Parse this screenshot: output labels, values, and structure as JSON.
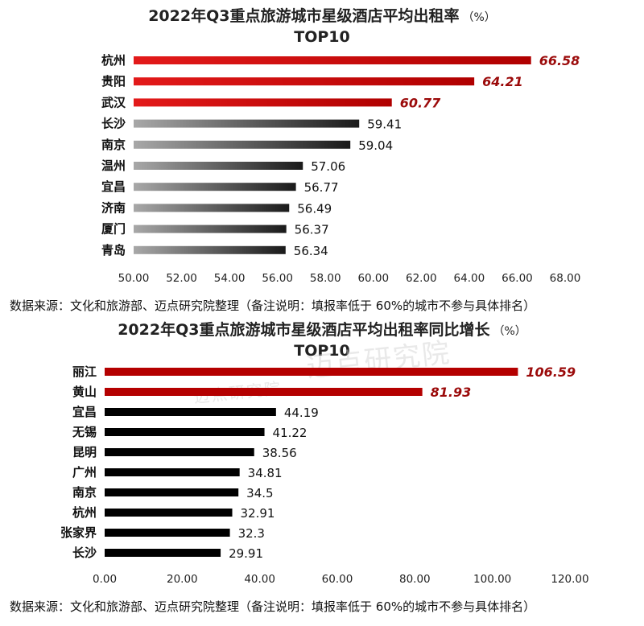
{
  "chart_data": [
    {
      "type": "bar",
      "orientation": "horizontal",
      "title": "2022年Q3重点旅游城市星级酒店平均出租率",
      "title_unit": "（%）",
      "subtitle": "TOP10",
      "categories": [
        "杭州",
        "贵阳",
        "武汉",
        "长沙",
        "南京",
        "温州",
        "宜昌",
        "济南",
        "厦门",
        "青岛"
      ],
      "values": [
        66.58,
        64.21,
        60.77,
        59.41,
        59.04,
        57.06,
        56.77,
        56.49,
        56.37,
        56.34
      ],
      "value_labels": [
        "66.58",
        "64.21",
        "60.77",
        "59.41",
        "59.04",
        "57.06",
        "56.77",
        "56.49",
        "56.37",
        "56.34"
      ],
      "highlight_count": 3,
      "xlim": [
        50,
        68
      ],
      "xticks": [
        "50.00",
        "52.00",
        "54.00",
        "56.00",
        "58.00",
        "60.00",
        "62.00",
        "64.00",
        "66.00",
        "68.00"
      ],
      "grid": false,
      "colors": {
        "highlight": "#cc0000",
        "highlight_label": "#9b0a0a",
        "normal_start": "#a6a6a6",
        "normal_end": "#1a1a1a"
      },
      "source": "数据来源：文化和旅游部、迈点研究院整理（备注说明：填报率低于 60%的城市不参与具体排名）"
    },
    {
      "type": "bar",
      "orientation": "horizontal",
      "title": "2022年Q3重点旅游城市星级酒店平均出租率同比增长",
      "title_unit": "（%）",
      "subtitle": "TOP10",
      "categories": [
        "丽江",
        "黄山",
        "宜昌",
        "无锡",
        "昆明",
        "广州",
        "南京",
        "杭州",
        "张家界",
        "长沙"
      ],
      "values": [
        106.59,
        81.93,
        44.19,
        41.22,
        38.56,
        34.81,
        34.5,
        32.91,
        32.3,
        29.91
      ],
      "value_labels": [
        "106.59",
        "81.93",
        "44.19",
        "41.22",
        "38.56",
        "34.81",
        "34.5",
        "32.91",
        "32.3",
        "29.91"
      ],
      "highlight_count": 2,
      "xlim": [
        0,
        120
      ],
      "xticks": [
        "0.00",
        "20.00",
        "40.00",
        "60.00",
        "80.00",
        "100.00",
        "120.00"
      ],
      "grid": false,
      "colors": {
        "highlight": "#b40000",
        "highlight_label": "#9b0a0a",
        "normal": "#000000"
      },
      "source": "数据来源：文化和旅游部、迈点研究院整理（备注说明：填报率低于 60%的城市不参与具体排名）"
    }
  ],
  "watermark": {
    "small": "迈点研究院",
    "large": "迈点研究院"
  }
}
